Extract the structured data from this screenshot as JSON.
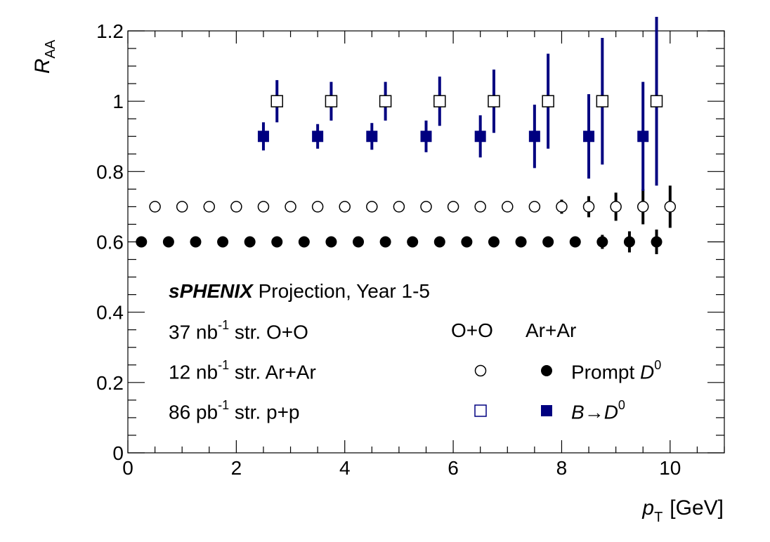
{
  "chart_data": {
    "type": "scatter",
    "xlabel": {
      "var": "p",
      "sub": "T",
      "unit": "[GeV]"
    },
    "ylabel": {
      "var": "R",
      "sub": "AA"
    },
    "xlim": [
      0,
      11
    ],
    "ylim": [
      0,
      1.2
    ],
    "x_ticks": [
      0,
      2,
      4,
      6,
      8,
      10
    ],
    "x_tick_labels": [
      "0",
      "2",
      "4",
      "6",
      "8",
      "10"
    ],
    "y_ticks": [
      0,
      0.2,
      0.4,
      0.6,
      0.8,
      1.0,
      1.2
    ],
    "y_tick_labels": [
      "0",
      "0.2",
      "0.4",
      "0.6",
      "0.8",
      "1",
      "1.2"
    ],
    "grid": false,
    "series": [
      {
        "key": "prompt_oo",
        "marker": "open-circle",
        "color": "#000000",
        "x": [
          0.5,
          1.0,
          1.5,
          2.0,
          2.5,
          3.0,
          3.5,
          4.0,
          4.5,
          5.0,
          5.5,
          6.0,
          6.5,
          7.0,
          7.5,
          8.0,
          8.5,
          9.0,
          9.5,
          10.0
        ],
        "y": [
          0.7,
          0.7,
          0.7,
          0.7,
          0.7,
          0.7,
          0.7,
          0.7,
          0.7,
          0.7,
          0.7,
          0.7,
          0.7,
          0.7,
          0.7,
          0.7,
          0.7,
          0.7,
          0.7,
          0.7
        ],
        "err": [
          0,
          0,
          0,
          0,
          0,
          0,
          0,
          0,
          0,
          0,
          0,
          0,
          0,
          0,
          0.005,
          0.02,
          0.03,
          0.04,
          0.05,
          0.06
        ]
      },
      {
        "key": "prompt_arar",
        "marker": "filled-circle",
        "color": "#000000",
        "x": [
          0.25,
          0.75,
          1.25,
          1.75,
          2.25,
          2.75,
          3.25,
          3.75,
          4.25,
          4.75,
          5.25,
          5.75,
          6.25,
          6.75,
          7.25,
          7.75,
          8.25,
          8.75,
          9.25,
          9.75
        ],
        "y": [
          0.6,
          0.6,
          0.6,
          0.6,
          0.6,
          0.6,
          0.6,
          0.6,
          0.6,
          0.6,
          0.6,
          0.6,
          0.6,
          0.6,
          0.6,
          0.6,
          0.6,
          0.6,
          0.6,
          0.6
        ],
        "err": [
          0,
          0,
          0,
          0,
          0,
          0,
          0,
          0,
          0,
          0,
          0,
          0,
          0,
          0,
          0,
          0,
          0.01,
          0.02,
          0.03,
          0.035
        ]
      },
      {
        "key": "btod_oo",
        "marker": "open-square",
        "color": "#000080",
        "x": [
          2.75,
          3.75,
          4.75,
          5.75,
          6.75,
          7.75,
          8.75,
          9.75
        ],
        "y": [
          1.0,
          1.0,
          1.0,
          1.0,
          1.0,
          1.0,
          1.0,
          1.0
        ],
        "err": [
          0.06,
          0.055,
          0.055,
          0.07,
          0.09,
          0.135,
          0.18,
          0.24
        ]
      },
      {
        "key": "btod_arar",
        "marker": "filled-square",
        "color": "#000080",
        "x": [
          2.5,
          3.5,
          4.5,
          5.5,
          6.5,
          7.5,
          8.5,
          9.5
        ],
        "y": [
          0.9,
          0.9,
          0.9,
          0.9,
          0.9,
          0.9,
          0.9,
          0.9
        ],
        "err": [
          0.04,
          0.035,
          0.038,
          0.045,
          0.06,
          0.09,
          0.12,
          0.155
        ]
      }
    ]
  },
  "annotations": {
    "brand": "sPHENIX",
    "projection": "Projection, Year 1-5",
    "lumi_oo": {
      "pre": "37 nb",
      "sup": "-1",
      "post": " str. O+O"
    },
    "lumi_arar": {
      "pre": "12 nb",
      "sup": "-1",
      "post": " str. Ar+Ar"
    },
    "lumi_pp": {
      "pre": "86 pb",
      "sup": "-1",
      "post": " str. p+p"
    }
  },
  "legend": {
    "col_oo": "O+O",
    "col_arar": "Ar+Ar",
    "row1": {
      "label": "Prompt ",
      "particle": "D",
      "particle_sup": "0"
    },
    "row2": {
      "label_b": "B",
      "arrow": "→",
      "particle": "D",
      "particle_sup": "0"
    }
  }
}
